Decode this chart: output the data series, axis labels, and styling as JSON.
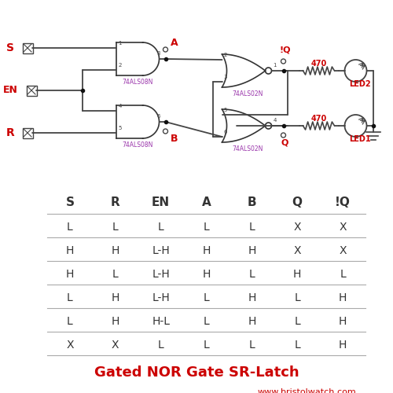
{
  "bg_color": "#ffffff",
  "title": "Gated NOR Gate SR-Latch",
  "website": "www.bristolwatch.com",
  "title_color": "#cc0000",
  "website_color": "#cc0000",
  "wire_color": "#444444",
  "gate_color": "#333333",
  "label_red": "#cc0000",
  "label_purple": "#9933aa",
  "node_color": "#111111",
  "line_color": "#aaaaaa",
  "table_headers": [
    "S",
    "R",
    "EN",
    "A",
    "B",
    "Q",
    "!Q"
  ],
  "table_rows": [
    [
      "L",
      "L",
      "L",
      "L",
      "L",
      "X",
      "X"
    ],
    [
      "H",
      "H",
      "L-H",
      "H",
      "H",
      "X",
      "X"
    ],
    [
      "H",
      "L",
      "L-H",
      "H",
      "L",
      "H",
      "L"
    ],
    [
      "L",
      "H",
      "L-H",
      "L",
      "H",
      "L",
      "H"
    ],
    [
      "L",
      "H",
      "H-L",
      "L",
      "H",
      "L",
      "H"
    ],
    [
      "X",
      "X",
      "L",
      "L",
      "L",
      "L",
      "H"
    ]
  ],
  "header_color": "#333333",
  "row_color": "#333333"
}
